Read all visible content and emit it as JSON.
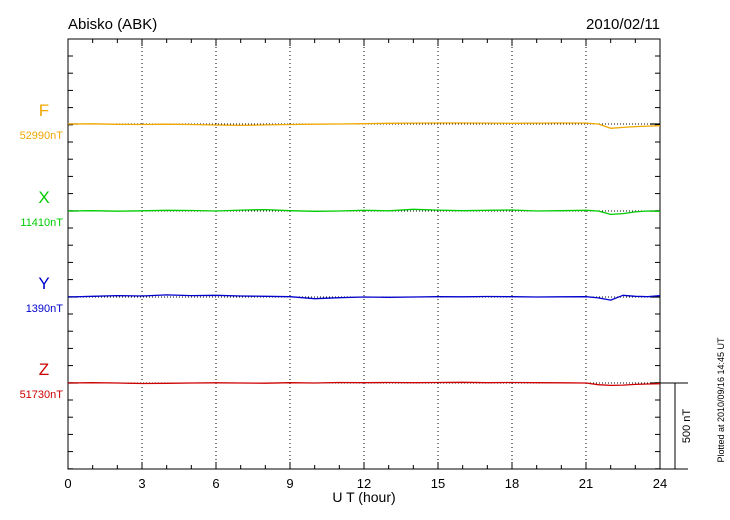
{
  "station": "Abisko (ABK)",
  "date": "2010/02/11",
  "plotted_note": "Plotted at 2010/09/16 14:45 UT",
  "chart_data": {
    "type": "line",
    "title": "Abisko (ABK)",
    "xlabel": "U T (hour)",
    "xlim": [
      0,
      24
    ],
    "x_ticks": [
      0,
      3,
      6,
      9,
      12,
      15,
      18,
      21,
      24
    ],
    "x_tick_labels": [
      "0",
      "3",
      "6",
      "9",
      "12",
      "15",
      "18",
      "21",
      "24"
    ],
    "grid": "vertical dotted lines every 3 hours",
    "scale_bar": {
      "label": "500 nT",
      "value_nT": 500
    },
    "series": [
      {
        "name": "F",
        "baseline_label": "52990nT",
        "baseline_nT": 52990,
        "color": "#f0a800",
        "x": [
          0,
          1,
          2,
          3,
          4,
          5,
          6,
          7,
          8,
          9,
          10,
          11,
          12,
          13,
          14,
          15,
          16,
          17,
          18,
          19,
          20,
          21,
          21.5,
          22,
          22.5,
          23,
          23.5,
          24
        ],
        "y": [
          52990,
          52991,
          52988,
          52987,
          52989,
          52987,
          52984,
          52982,
          52985,
          52987,
          52989,
          52990,
          52992,
          52994,
          52995,
          52996,
          52996,
          52995,
          52994,
          52995,
          52996,
          52995,
          52990,
          52965,
          52970,
          52975,
          52978,
          52980
        ]
      },
      {
        "name": "X",
        "baseline_label": "11410nT",
        "baseline_nT": 11410,
        "color": "#00cc00",
        "x": [
          0,
          1,
          2,
          3,
          4,
          5,
          6,
          7,
          8,
          9,
          10,
          11,
          12,
          13,
          14,
          15,
          16,
          17,
          18,
          19,
          20,
          21,
          21.5,
          22,
          22.5,
          23,
          23.5,
          24
        ],
        "y": [
          11410,
          11412,
          11409,
          11411,
          11414,
          11413,
          11410,
          11415,
          11418,
          11412,
          11408,
          11410,
          11414,
          11411,
          11420,
          11415,
          11412,
          11414,
          11416,
          11410,
          11412,
          11414,
          11410,
          11390,
          11395,
          11405,
          11410,
          11408
        ]
      },
      {
        "name": "Y",
        "baseline_label": "1390nT",
        "baseline_nT": 1390,
        "color": "#0000cc",
        "x": [
          0,
          1,
          2,
          3,
          4,
          5,
          6,
          7,
          8,
          9,
          10,
          11,
          12,
          13,
          14,
          15,
          16,
          17,
          18,
          19,
          20,
          21,
          21.5,
          22,
          22.5,
          23,
          23.5,
          24
        ],
        "y": [
          1390,
          1394,
          1398,
          1396,
          1402,
          1398,
          1400,
          1396,
          1394,
          1392,
          1380,
          1386,
          1390,
          1388,
          1390,
          1392,
          1391,
          1393,
          1392,
          1390,
          1391,
          1392,
          1385,
          1372,
          1400,
          1394,
          1392,
          1398
        ]
      },
      {
        "name": "Z",
        "baseline_label": "51730nT",
        "baseline_nT": 51730,
        "color": "#cc0000",
        "x": [
          0,
          1,
          2,
          3,
          4,
          5,
          6,
          7,
          8,
          9,
          10,
          11,
          12,
          13,
          14,
          15,
          16,
          17,
          18,
          19,
          20,
          21,
          21.5,
          22,
          22.5,
          23,
          23.5,
          24
        ],
        "y": [
          51730,
          51732,
          51730,
          51727,
          51728,
          51730,
          51731,
          51730,
          51729,
          51732,
          51730,
          51733,
          51732,
          51733,
          51732,
          51733,
          51734,
          51732,
          51733,
          51732,
          51731,
          51730,
          51720,
          51716,
          51718,
          51722,
          51724,
          51726
        ]
      }
    ]
  }
}
